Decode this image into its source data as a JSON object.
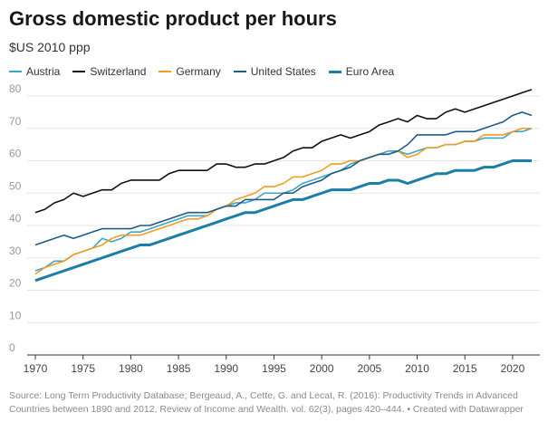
{
  "chart_data": {
    "type": "line",
    "title": "Gross domestic product per hours",
    "subtitle": "$US 2010 ppp",
    "xlabel": "",
    "ylabel": "",
    "xlim": [
      1970,
      2022
    ],
    "ylim": [
      0,
      80
    ],
    "yticks": [
      0,
      10,
      20,
      30,
      40,
      50,
      60,
      70,
      80
    ],
    "xticks": [
      1970,
      1975,
      1980,
      1985,
      1990,
      1995,
      2000,
      2005,
      2010,
      2015,
      2020
    ],
    "grid": true,
    "legend_position": "top-left",
    "x_start": 1970,
    "series": [
      {
        "name": "Austria",
        "color": "#3aa6c9",
        "width": 1.6,
        "values": [
          26,
          27,
          29,
          29,
          31,
          32,
          33,
          36,
          35,
          36,
          38,
          38,
          39,
          40,
          41,
          42,
          43,
          43,
          43,
          45,
          46,
          47,
          47,
          48,
          50,
          50,
          50,
          51,
          53,
          54,
          55,
          56,
          57,
          59,
          60,
          61,
          62,
          63,
          63,
          62,
          63,
          64,
          64,
          65,
          65,
          66,
          66,
          67,
          67,
          67,
          69,
          69,
          70
        ]
      },
      {
        "name": "Switzerland",
        "color": "#111111",
        "width": 1.6,
        "values": [
          44,
          45,
          47,
          48,
          50,
          49,
          50,
          51,
          51,
          53,
          54,
          54,
          54,
          54,
          56,
          57,
          57,
          57,
          57,
          59,
          59,
          58,
          58,
          59,
          59,
          60,
          61,
          63,
          64,
          64,
          66,
          67,
          68,
          67,
          68,
          69,
          71,
          72,
          73,
          72,
          74,
          73,
          73,
          75,
          76,
          75,
          76,
          77,
          78,
          79,
          80,
          81,
          82
        ]
      },
      {
        "name": "Germany",
        "color": "#f39c1f",
        "width": 1.6,
        "values": [
          25,
          27,
          28,
          29,
          31,
          32,
          33,
          34,
          36,
          37,
          37,
          37,
          38,
          39,
          40,
          41,
          42,
          42,
          43,
          45,
          46,
          48,
          49,
          50,
          52,
          52,
          53,
          55,
          55,
          56,
          57,
          59,
          59,
          60,
          60,
          61,
          62,
          62,
          63,
          61,
          62,
          64,
          64,
          65,
          65,
          66,
          66,
          68,
          68,
          68,
          69,
          70,
          70
        ]
      },
      {
        "name": "United States",
        "color": "#1d5b85",
        "width": 1.6,
        "values": [
          34,
          35,
          36,
          37,
          36,
          37,
          38,
          39,
          39,
          39,
          39,
          40,
          40,
          41,
          42,
          43,
          44,
          44,
          44,
          45,
          46,
          46,
          48,
          48,
          48,
          48,
          50,
          50,
          52,
          53,
          54,
          56,
          57,
          58,
          60,
          61,
          62,
          62,
          63,
          65,
          68,
          68,
          68,
          68,
          69,
          69,
          69,
          70,
          71,
          72,
          74,
          75,
          74
        ]
      },
      {
        "name": "Euro Area",
        "color": "#1a7ea6",
        "width": 3,
        "values": [
          23,
          24,
          25,
          26,
          27,
          28,
          29,
          30,
          31,
          32,
          33,
          34,
          34,
          35,
          36,
          37,
          38,
          39,
          40,
          41,
          42,
          43,
          44,
          44,
          45,
          46,
          47,
          48,
          48,
          49,
          50,
          51,
          51,
          51,
          52,
          53,
          53,
          54,
          54,
          53,
          54,
          55,
          56,
          56,
          57,
          57,
          57,
          58,
          58,
          59,
          60,
          60,
          60
        ]
      }
    ]
  },
  "source": "Source: Long Term Productivity Database; Bergeaud, A., Cette, G. and Lecat, R. (2016):  Productivity Trends in Advanced Countries between 1890 and 2012,  Review of Income and Wealth. vol. 62(3), pages 420–444.  • Created with Datawrapper"
}
